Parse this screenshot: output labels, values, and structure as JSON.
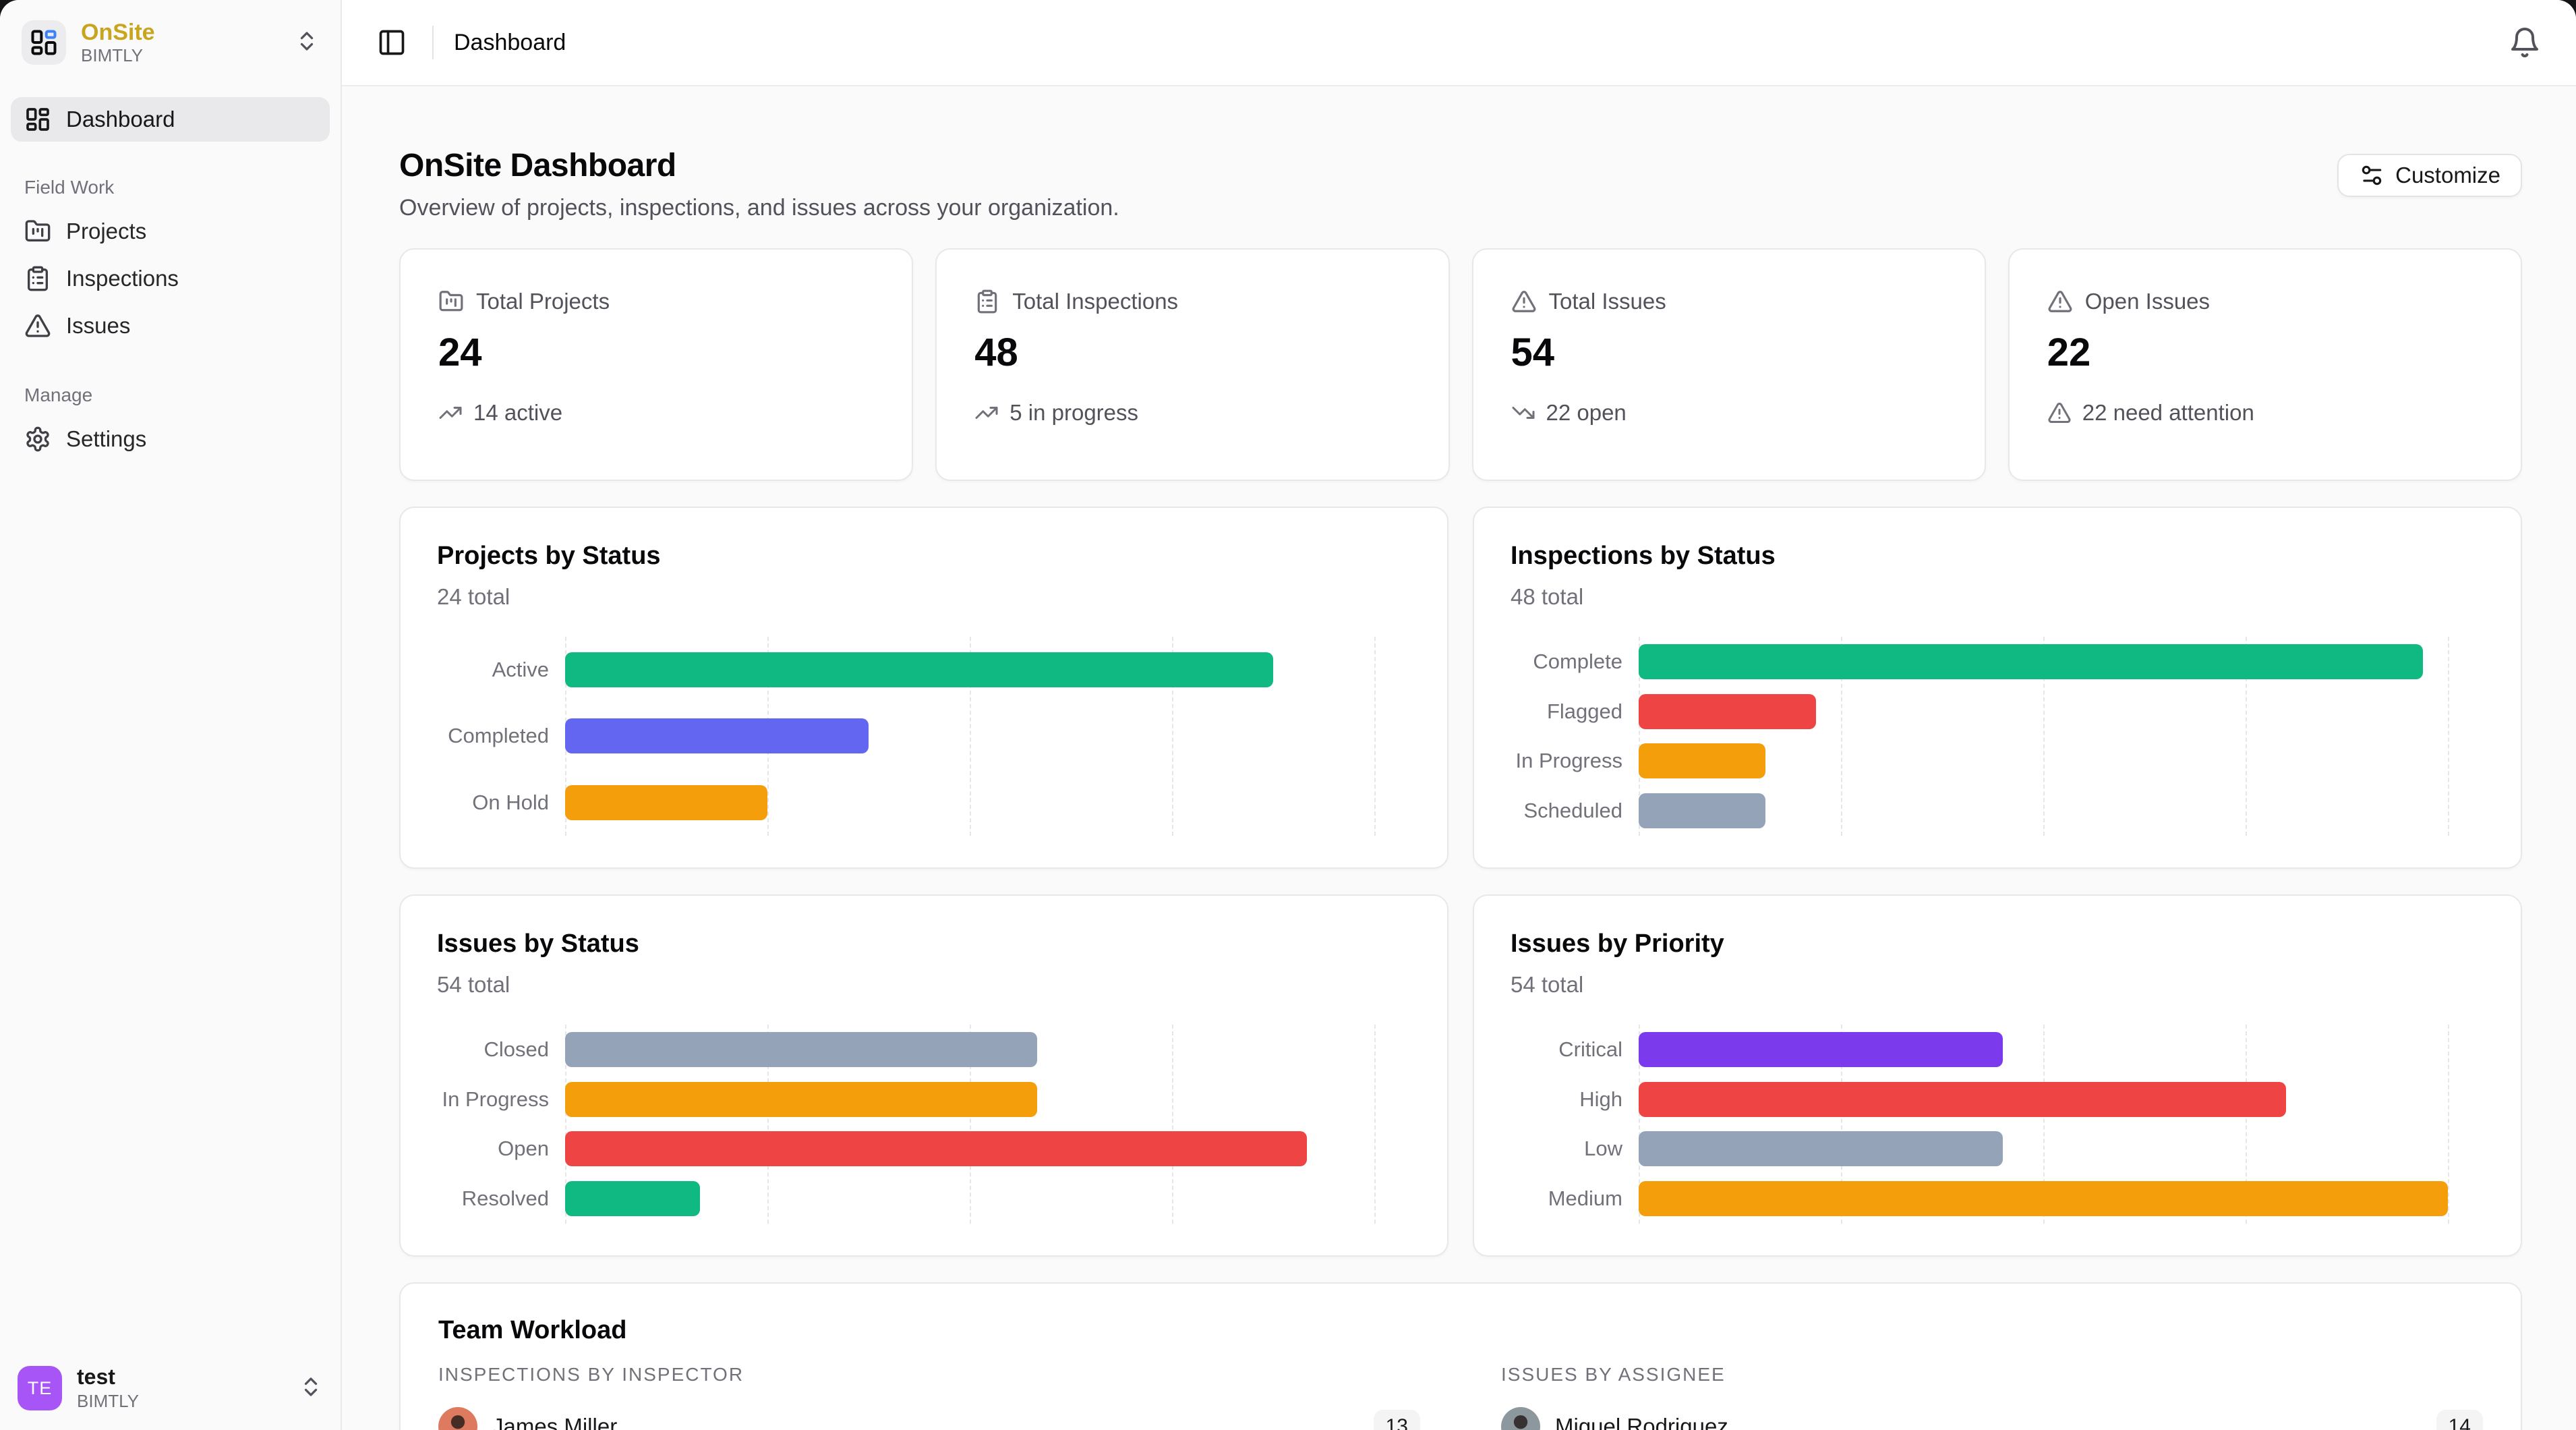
{
  "sidebar": {
    "brand": {
      "name": "OnSite",
      "org": "BIMTLY"
    },
    "active_item": "Dashboard",
    "sections": [
      {
        "label": "Field Work",
        "items": [
          {
            "label": "Projects",
            "icon": "folder-kanban-icon"
          },
          {
            "label": "Inspections",
            "icon": "clipboard-list-icon"
          },
          {
            "label": "Issues",
            "icon": "triangle-alert-icon"
          }
        ]
      },
      {
        "label": "Manage",
        "items": [
          {
            "label": "Settings",
            "icon": "gear-icon"
          }
        ]
      }
    ],
    "user": {
      "initials": "TE",
      "name": "test",
      "org": "BIMTLY",
      "avatar_color": "#a855f7"
    }
  },
  "header": {
    "breadcrumb": "Dashboard"
  },
  "page": {
    "title": "OnSite Dashboard",
    "subtitle": "Overview of projects, inspections, and issues across your organization.",
    "customize_label": "Customize"
  },
  "stats": [
    {
      "label": "Total Projects",
      "value": "24",
      "trend": "14 active",
      "icon": "folder-kanban-icon",
      "trend_icon": "trending-up-icon"
    },
    {
      "label": "Total Inspections",
      "value": "48",
      "trend": "5 in progress",
      "icon": "clipboard-list-icon",
      "trend_icon": "trending-up-icon"
    },
    {
      "label": "Total Issues",
      "value": "54",
      "trend": "22 open",
      "icon": "triangle-alert-icon",
      "trend_icon": "trending-down-icon"
    },
    {
      "label": "Open Issues",
      "value": "22",
      "trend": "22 need attention",
      "icon": "triangle-alert-icon",
      "trend_icon": "triangle-alert-icon"
    }
  ],
  "chart_data": [
    {
      "type": "bar",
      "orientation": "horizontal",
      "title": "Projects by Status",
      "subtitle": "24 total",
      "categories": [
        "Active",
        "Completed",
        "On Hold"
      ],
      "values": [
        14,
        6,
        4
      ],
      "colors": [
        "#10b981",
        "#6366f1",
        "#f59e0b"
      ],
      "xlim": [
        0,
        16
      ],
      "grid": "dashed-vertical",
      "legend": "none"
    },
    {
      "type": "bar",
      "orientation": "horizontal",
      "title": "Inspections by Status",
      "subtitle": "48 total",
      "categories": [
        "Complete",
        "Flagged",
        "In Progress",
        "Scheduled"
      ],
      "values": [
        31,
        7,
        5,
        5
      ],
      "colors": [
        "#10b981",
        "#ef4444",
        "#f59e0b",
        "#94a3b8"
      ],
      "xlim": [
        0,
        32
      ],
      "grid": "dashed-vertical",
      "legend": "none"
    },
    {
      "type": "bar",
      "orientation": "horizontal",
      "title": "Issues by Status",
      "subtitle": "54 total",
      "categories": [
        "Closed",
        "In Progress",
        "Open",
        "Resolved"
      ],
      "values": [
        14,
        14,
        22,
        4
      ],
      "colors": [
        "#94a3b8",
        "#f59e0b",
        "#ef4444",
        "#10b981"
      ],
      "xlim": [
        0,
        24
      ],
      "grid": "dashed-vertical",
      "legend": "none"
    },
    {
      "type": "bar",
      "orientation": "horizontal",
      "title": "Issues by Priority",
      "subtitle": "54 total",
      "categories": [
        "Critical",
        "High",
        "Low",
        "Medium"
      ],
      "values": [
        9,
        16,
        9,
        20
      ],
      "colors": [
        "#7c3aed",
        "#ef4444",
        "#94a3b8",
        "#f59e0b"
      ],
      "xlim": [
        0,
        20
      ],
      "grid": "dashed-vertical",
      "legend": "none"
    }
  ],
  "team_workload": {
    "title": "Team Workload",
    "columns": [
      {
        "heading": "INSPECTIONS BY INSPECTOR",
        "rows": [
          {
            "name": "James Miller",
            "count": "13",
            "avatar_color": "#dd7a5f"
          }
        ]
      },
      {
        "heading": "ISSUES BY ASSIGNEE",
        "rows": [
          {
            "name": "Miguel Rodriguez",
            "count": "14",
            "avatar_color": "#8d979e"
          }
        ]
      }
    ]
  },
  "colors": {
    "brand_gold": "#c9a51e",
    "logo_accent_blue": "#3b82f6",
    "green": "#10b981",
    "red": "#ef4444",
    "amber": "#f59e0b",
    "slate": "#94a3b8",
    "indigo": "#6366f1",
    "violet": "#7c3aed",
    "card_border": "#e8e8ea",
    "page_bg": "#fafafa"
  }
}
